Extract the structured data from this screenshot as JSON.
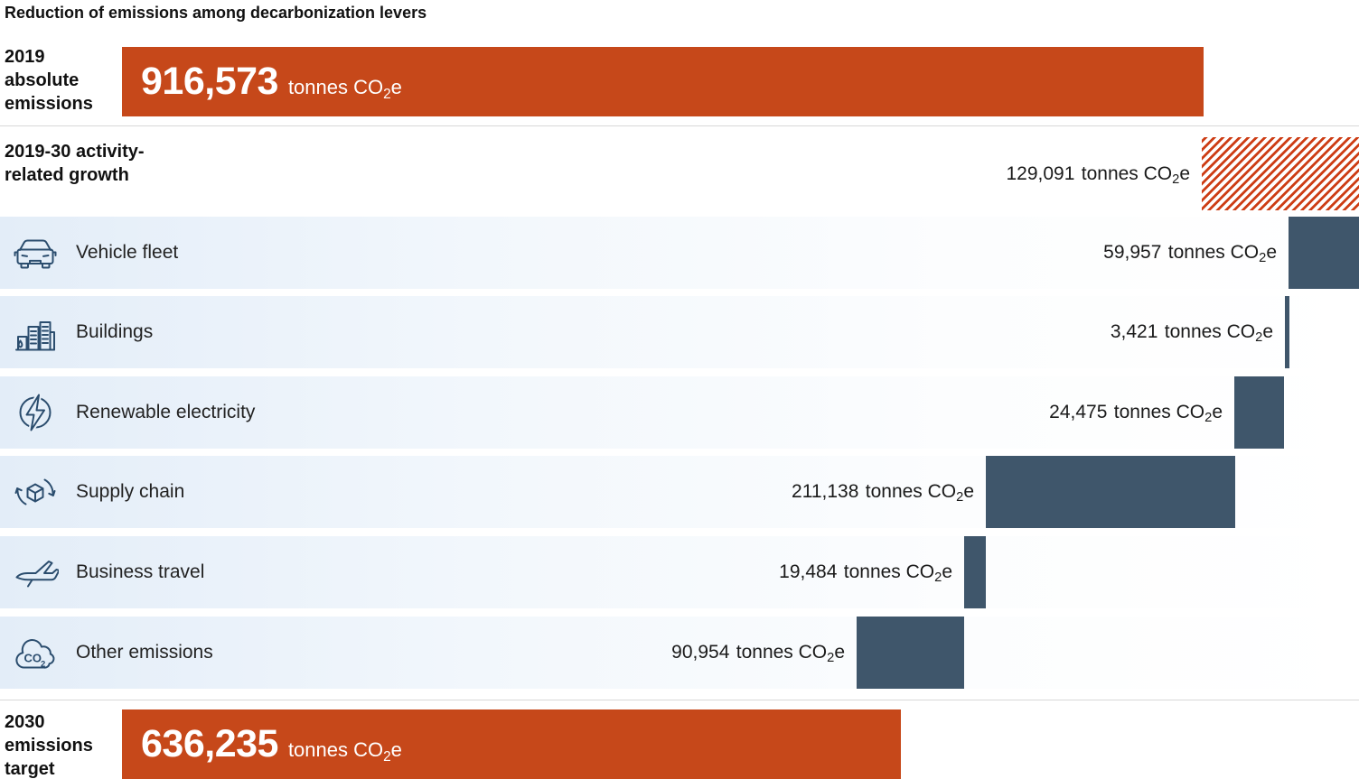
{
  "title": "Reduction of emissions among decarbonization levers",
  "unit": {
    "prefix": "tonnes CO",
    "sub": "2",
    "suffix": "e"
  },
  "colors": {
    "orange": "#c6481a",
    "hatch_red": "#cd3d15",
    "dark_blue": "#3f566b",
    "row_bg_start": "#e3edf8",
    "icon": "#2b4d6e",
    "separator": "#d8d8d8",
    "text": "#1a1a1a",
    "bar_text": "#ffffff"
  },
  "chart_data": {
    "type": "bar",
    "subtype": "horizontal-waterfall",
    "title": "Reduction of emissions among decarbonization levers",
    "unit_label": "tonnes CO2e",
    "legend_position": "none",
    "grid": false,
    "xlim": [
      0,
      1045664
    ],
    "start": {
      "label": "2019 absolute emissions",
      "value": 916573,
      "value_text": "916,573"
    },
    "growth": {
      "label": "2019-30 activity-related growth",
      "value": 129091,
      "value_text": "129,091",
      "direction": "increase",
      "style": "red-diagonal-hatch"
    },
    "levers": [
      {
        "label": "Vehicle fleet",
        "icon": "car-icon",
        "value": 59957,
        "value_text": "59,957",
        "direction": "decrease"
      },
      {
        "label": "Buildings",
        "icon": "buildings-icon",
        "value": 3421,
        "value_text": "3,421",
        "direction": "decrease"
      },
      {
        "label": "Renewable electricity",
        "icon": "lightning-icon",
        "value": 24475,
        "value_text": "24,475",
        "direction": "decrease"
      },
      {
        "label": "Supply chain",
        "icon": "supply-chain-icon",
        "value": 211138,
        "value_text": "211,138",
        "direction": "decrease"
      },
      {
        "label": "Business travel",
        "icon": "plane-icon",
        "value": 19484,
        "value_text": "19,484",
        "direction": "decrease"
      },
      {
        "label": "Other emissions",
        "icon": "co2-cloud-icon",
        "value": 90954,
        "value_text": "90,954",
        "direction": "decrease"
      }
    ],
    "end": {
      "label": "2030 emissions target",
      "value": 636235,
      "value_text": "636,235"
    }
  }
}
